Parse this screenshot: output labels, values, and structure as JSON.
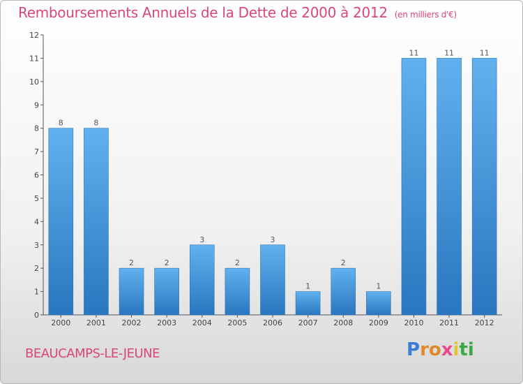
{
  "title": "Remboursements Annuels de la Dette de 2000 à 2012",
  "unit": "(en milliers d'€)",
  "commune": "BEAUCAMPS-LE-JEUNE",
  "logo": {
    "letters": [
      "P",
      "r",
      "o",
      "x",
      "i",
      "t",
      "i"
    ],
    "colors": [
      "#3a7fd5",
      "#e0892b",
      "#e0892b",
      "#e84a8f",
      "#e0c52b",
      "#3aa845",
      "#3aa845"
    ]
  },
  "colors": {
    "bar": "#3b8fd6",
    "bar_light": "#62b1ee",
    "bar_dark": "#2a76bf",
    "title": "#d9477a"
  },
  "chart_data": {
    "type": "bar",
    "categories": [
      "2000",
      "2001",
      "2002",
      "2003",
      "2004",
      "2005",
      "2006",
      "2007",
      "2008",
      "2009",
      "2010",
      "2011",
      "2012"
    ],
    "values": [
      8,
      8,
      2,
      2,
      3,
      2,
      3,
      1,
      2,
      1,
      11,
      11,
      11
    ],
    "data_labels": [
      "8",
      "8",
      "2",
      "2",
      "3",
      "2",
      "3",
      "1",
      "2",
      "1",
      "11",
      "11",
      "11"
    ],
    "yticks": [
      "0",
      "1",
      "2",
      "3",
      "4",
      "5",
      "6",
      "7",
      "8",
      "9",
      "10",
      "11",
      "12"
    ],
    "ylim": [
      0,
      12
    ],
    "grid": false,
    "legend": "none"
  }
}
